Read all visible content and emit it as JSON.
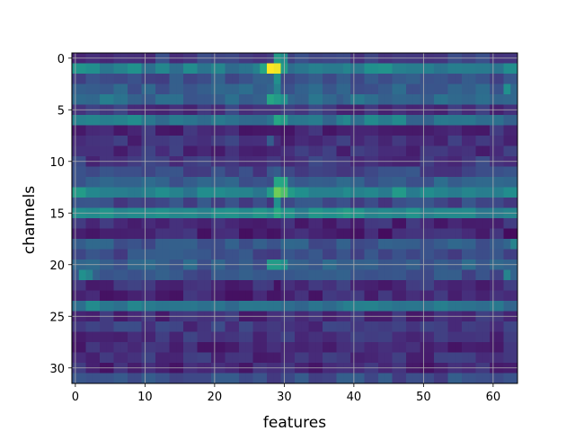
{
  "chart_data": {
    "type": "heatmap",
    "title": "",
    "xlabel": "features",
    "ylabel": "channels",
    "n_cols": 64,
    "n_rows": 32,
    "x_range": [
      -0.5,
      63.5
    ],
    "y_range": [
      -0.5,
      31.5
    ],
    "y_inverted": true,
    "xticks": [
      0,
      10,
      20,
      30,
      40,
      50,
      60
    ],
    "yticks": [
      0,
      5,
      10,
      15,
      20,
      25,
      30
    ],
    "grid": true,
    "colormap": "viridis",
    "value_range": [
      0,
      1
    ],
    "row_profiles": [
      {
        "row": 0,
        "base": 0.18,
        "spikes": [
          {
            "col": 29,
            "v": 0.55
          },
          {
            "col": 30,
            "v": 0.48
          }
        ]
      },
      {
        "row": 1,
        "base": 0.42,
        "spikes": [
          {
            "col": 28,
            "v": 1.0
          },
          {
            "col": 29,
            "v": 0.98
          },
          {
            "col": 27,
            "v": 0.6
          },
          {
            "col": 30,
            "v": 0.55
          }
        ]
      },
      {
        "row": 2,
        "base": 0.25,
        "spikes": [
          {
            "col": 29,
            "v": 0.5
          }
        ]
      },
      {
        "row": 3,
        "base": 0.3,
        "spikes": [
          {
            "col": 29,
            "v": 0.45
          },
          {
            "col": 62,
            "v": 0.5
          }
        ]
      },
      {
        "row": 4,
        "base": 0.33,
        "spikes": [
          {
            "col": 28,
            "v": 0.6
          },
          {
            "col": 29,
            "v": 0.55
          },
          {
            "col": 30,
            "v": 0.5
          }
        ]
      },
      {
        "row": 5,
        "base": 0.16,
        "spikes": []
      },
      {
        "row": 6,
        "base": 0.38,
        "spikes": [
          {
            "col": 29,
            "v": 0.6
          },
          {
            "col": 30,
            "v": 0.55
          }
        ]
      },
      {
        "row": 7,
        "base": 0.12,
        "spikes": []
      },
      {
        "row": 8,
        "base": 0.15,
        "spikes": [
          {
            "col": 28,
            "v": 0.3
          }
        ]
      },
      {
        "row": 9,
        "base": 0.14,
        "spikes": []
      },
      {
        "row": 10,
        "base": 0.17,
        "spikes": []
      },
      {
        "row": 11,
        "base": 0.21,
        "spikes": [
          {
            "col": 29,
            "v": 0.3
          }
        ]
      },
      {
        "row": 12,
        "base": 0.3,
        "spikes": [
          {
            "col": 29,
            "v": 0.6
          },
          {
            "col": 30,
            "v": 0.6
          }
        ]
      },
      {
        "row": 13,
        "base": 0.44,
        "spikes": [
          {
            "col": 29,
            "v": 0.78
          },
          {
            "col": 30,
            "v": 0.72
          },
          {
            "col": 28,
            "v": 0.55
          },
          {
            "col": 31,
            "v": 0.55
          },
          {
            "col": 0,
            "v": 0.55
          }
        ]
      },
      {
        "row": 14,
        "base": 0.22,
        "spikes": [
          {
            "col": 29,
            "v": 0.5
          }
        ]
      },
      {
        "row": 15,
        "base": 0.46,
        "spikes": [
          {
            "col": 29,
            "v": 0.62
          }
        ]
      },
      {
        "row": 16,
        "base": 0.12,
        "spikes": []
      },
      {
        "row": 17,
        "base": 0.1,
        "spikes": [
          {
            "col": 28,
            "v": 0.05
          }
        ]
      },
      {
        "row": 18,
        "base": 0.28,
        "spikes": [
          {
            "col": 63,
            "v": 0.45
          }
        ]
      },
      {
        "row": 19,
        "base": 0.24,
        "spikes": []
      },
      {
        "row": 20,
        "base": 0.3,
        "spikes": [
          {
            "col": 28,
            "v": 0.55
          },
          {
            "col": 29,
            "v": 0.55
          },
          {
            "col": 30,
            "v": 0.5
          }
        ]
      },
      {
        "row": 21,
        "base": 0.26,
        "spikes": [
          {
            "col": 1,
            "v": 0.5
          },
          {
            "col": 2,
            "v": 0.45
          },
          {
            "col": 62,
            "v": 0.45
          }
        ]
      },
      {
        "row": 22,
        "base": 0.14,
        "spikes": [
          {
            "col": 29,
            "v": 0.05
          }
        ]
      },
      {
        "row": 23,
        "base": 0.11,
        "spikes": []
      },
      {
        "row": 24,
        "base": 0.38,
        "spikes": []
      },
      {
        "row": 25,
        "base": 0.13,
        "spikes": []
      },
      {
        "row": 26,
        "base": 0.17,
        "spikes": []
      },
      {
        "row": 27,
        "base": 0.15,
        "spikes": []
      },
      {
        "row": 28,
        "base": 0.11,
        "spikes": []
      },
      {
        "row": 29,
        "base": 0.14,
        "spikes": []
      },
      {
        "row": 30,
        "base": 0.12,
        "spikes": []
      },
      {
        "row": 31,
        "base": 0.24,
        "spikes": []
      }
    ]
  }
}
